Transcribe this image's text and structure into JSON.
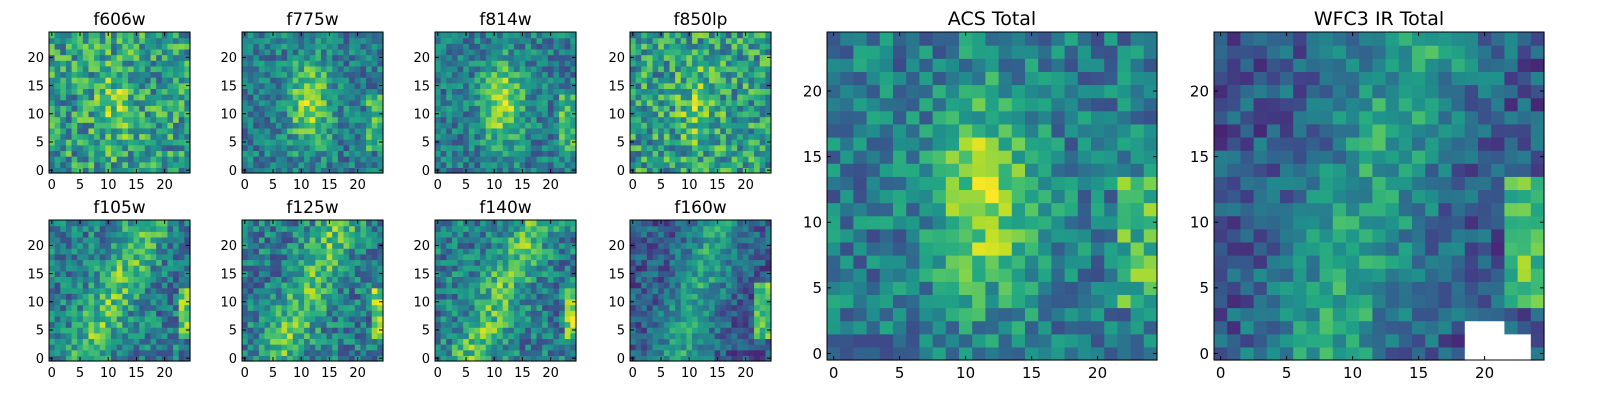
{
  "chart_data": [
    {
      "type": "heatmap",
      "title": "f606w",
      "colormap": "viridis",
      "grid": false,
      "xlim": [
        -0.5,
        24.5
      ],
      "ylim": [
        -0.5,
        24.5
      ],
      "x_ticks": [
        "0",
        "5",
        "10",
        "15",
        "20"
      ],
      "y_ticks": [
        "0",
        "5",
        "10",
        "15",
        "20"
      ],
      "pixels": [
        25,
        25
      ],
      "seed": 11,
      "pattern": "noisy-central-bright"
    },
    {
      "type": "heatmap",
      "title": "f775w",
      "colormap": "viridis",
      "grid": false,
      "xlim": [
        -0.5,
        24.5
      ],
      "ylim": [
        -0.5,
        24.5
      ],
      "x_ticks": [
        "0",
        "5",
        "10",
        "15",
        "20"
      ],
      "y_ticks": [
        "0",
        "5",
        "10",
        "15",
        "20"
      ],
      "pixels": [
        25,
        25
      ],
      "seed": 23,
      "pattern": "central-vertical-bright"
    },
    {
      "type": "heatmap",
      "title": "f814w",
      "colormap": "viridis",
      "grid": false,
      "xlim": [
        -0.5,
        24.5
      ],
      "ylim": [
        -0.5,
        24.5
      ],
      "x_ticks": [
        "0",
        "5",
        "10",
        "15",
        "20"
      ],
      "y_ticks": [
        "0",
        "5",
        "10",
        "15",
        "20"
      ],
      "pixels": [
        25,
        25
      ],
      "seed": 37,
      "pattern": "central-vertical-bright"
    },
    {
      "type": "heatmap",
      "title": "f850lp",
      "colormap": "viridis",
      "grid": false,
      "xlim": [
        -0.5,
        24.5
      ],
      "ylim": [
        -0.5,
        24.5
      ],
      "x_ticks": [
        "0",
        "5",
        "10",
        "15",
        "20"
      ],
      "y_ticks": [
        "0",
        "5",
        "10",
        "15",
        "20"
      ],
      "pixels": [
        25,
        25
      ],
      "seed": 41,
      "pattern": "noisy-central-bright"
    },
    {
      "type": "heatmap",
      "title": "f105w",
      "colormap": "viridis",
      "grid": false,
      "xlim": [
        -0.5,
        24.5
      ],
      "ylim": [
        -0.5,
        24.5
      ],
      "x_ticks": [
        "0",
        "5",
        "10",
        "15",
        "20"
      ],
      "y_ticks": [
        "0",
        "5",
        "10",
        "15",
        "20"
      ],
      "pixels": [
        25,
        25
      ],
      "seed": 53,
      "pattern": "diagonal-plus-right-edge"
    },
    {
      "type": "heatmap",
      "title": "f125w",
      "colormap": "viridis",
      "grid": false,
      "xlim": [
        -0.5,
        24.5
      ],
      "ylim": [
        -0.5,
        24.5
      ],
      "x_ticks": [
        "0",
        "5",
        "10",
        "15",
        "20"
      ],
      "y_ticks": [
        "0",
        "5",
        "10",
        "15",
        "20"
      ],
      "pixels": [
        25,
        25
      ],
      "seed": 67,
      "pattern": "diagonal-plus-right-edge"
    },
    {
      "type": "heatmap",
      "title": "f140w",
      "colormap": "viridis",
      "grid": false,
      "xlim": [
        -0.5,
        24.5
      ],
      "ylim": [
        -0.5,
        24.5
      ],
      "x_ticks": [
        "0",
        "5",
        "10",
        "15",
        "20"
      ],
      "y_ticks": [
        "0",
        "5",
        "10",
        "15",
        "20"
      ],
      "pixels": [
        25,
        25
      ],
      "seed": 71,
      "pattern": "diagonal-plus-right-edge"
    },
    {
      "type": "heatmap",
      "title": "f160w",
      "colormap": "viridis",
      "grid": false,
      "xlim": [
        -0.5,
        24.5
      ],
      "ylim": [
        -0.5,
        24.5
      ],
      "x_ticks": [
        "0",
        "5",
        "10",
        "15",
        "20"
      ],
      "y_ticks": [
        "0",
        "5",
        "10",
        "15",
        "20"
      ],
      "pixels": [
        25,
        25
      ],
      "seed": 83,
      "pattern": "dark-diagonal-plus-right-edge"
    },
    {
      "type": "heatmap",
      "title": "ACS Total",
      "colormap": "viridis",
      "grid": false,
      "xlim": [
        -0.5,
        24.5
      ],
      "ylim": [
        -0.5,
        24.5
      ],
      "x_ticks": [
        "0",
        "5",
        "10",
        "15",
        "20"
      ],
      "y_ticks": [
        "0",
        "5",
        "10",
        "15",
        "20"
      ],
      "pixels": [
        25,
        25
      ],
      "seed": 97,
      "pattern": "central-vertical-bright"
    },
    {
      "type": "heatmap",
      "title": "WFC3 IR Total",
      "colormap": "viridis",
      "grid": false,
      "xlim": [
        -0.5,
        24.5
      ],
      "ylim": [
        -0.5,
        24.5
      ],
      "x_ticks": [
        "0",
        "5",
        "10",
        "15",
        "20"
      ],
      "y_ticks": [
        "0",
        "5",
        "10",
        "15",
        "20"
      ],
      "pixels": [
        25,
        25
      ],
      "seed": 101,
      "pattern": "dark-diagonal-plus-right-edge",
      "masked_region": "bottom-right (white, x 19-23, y 0-2)"
    }
  ]
}
